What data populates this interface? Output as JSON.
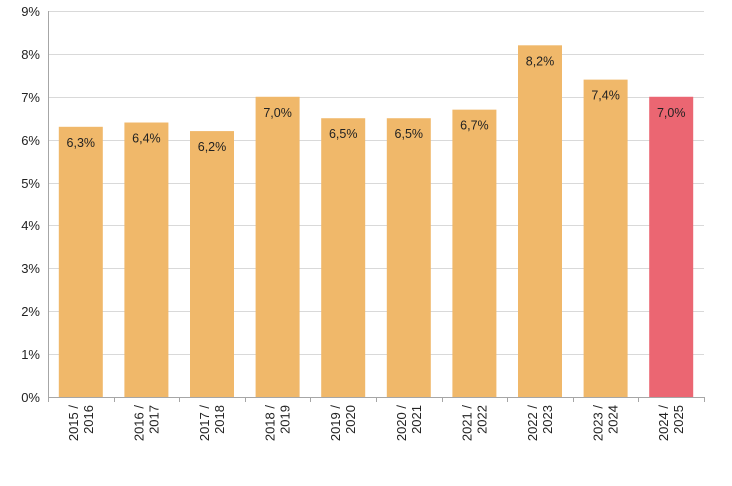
{
  "chart_data": {
    "type": "bar",
    "categories": [
      [
        "2015 /",
        "2016"
      ],
      [
        "2016 /",
        "2017"
      ],
      [
        "2017 /",
        "2018"
      ],
      [
        "2018 /",
        "2019"
      ],
      [
        "2019 /",
        "2020"
      ],
      [
        "2020 /",
        "2021"
      ],
      [
        "2021 /",
        "2022"
      ],
      [
        "2022 /",
        "2023"
      ],
      [
        "2023 /",
        "2024"
      ],
      [
        "2024 /",
        "2025"
      ]
    ],
    "values": [
      6.3,
      6.4,
      6.2,
      7.0,
      6.5,
      6.5,
      6.7,
      8.2,
      7.4,
      7.0
    ],
    "data_labels": [
      "6,3%",
      "6,4%",
      "6,2%",
      "7,0%",
      "6,5%",
      "6,5%",
      "6,7%",
      "8,2%",
      "7,4%",
      "7,0%"
    ],
    "title": "",
    "xlabel": "",
    "ylabel": "",
    "ylim": [
      0,
      9
    ],
    "yticks": [
      0,
      1,
      2,
      3,
      4,
      5,
      6,
      7,
      8,
      9
    ],
    "ytick_labels": [
      "0%",
      "1%",
      "2%",
      "3%",
      "4%",
      "5%",
      "6%",
      "7%",
      "8%",
      "9%"
    ],
    "grid": true,
    "legend": "none",
    "colors": {
      "bar": "#F0B86A",
      "highlight_bar": "#EB6672",
      "grid": "#D9D9D9",
      "axis": "#A6A6A6"
    },
    "highlight_index": 9
  }
}
